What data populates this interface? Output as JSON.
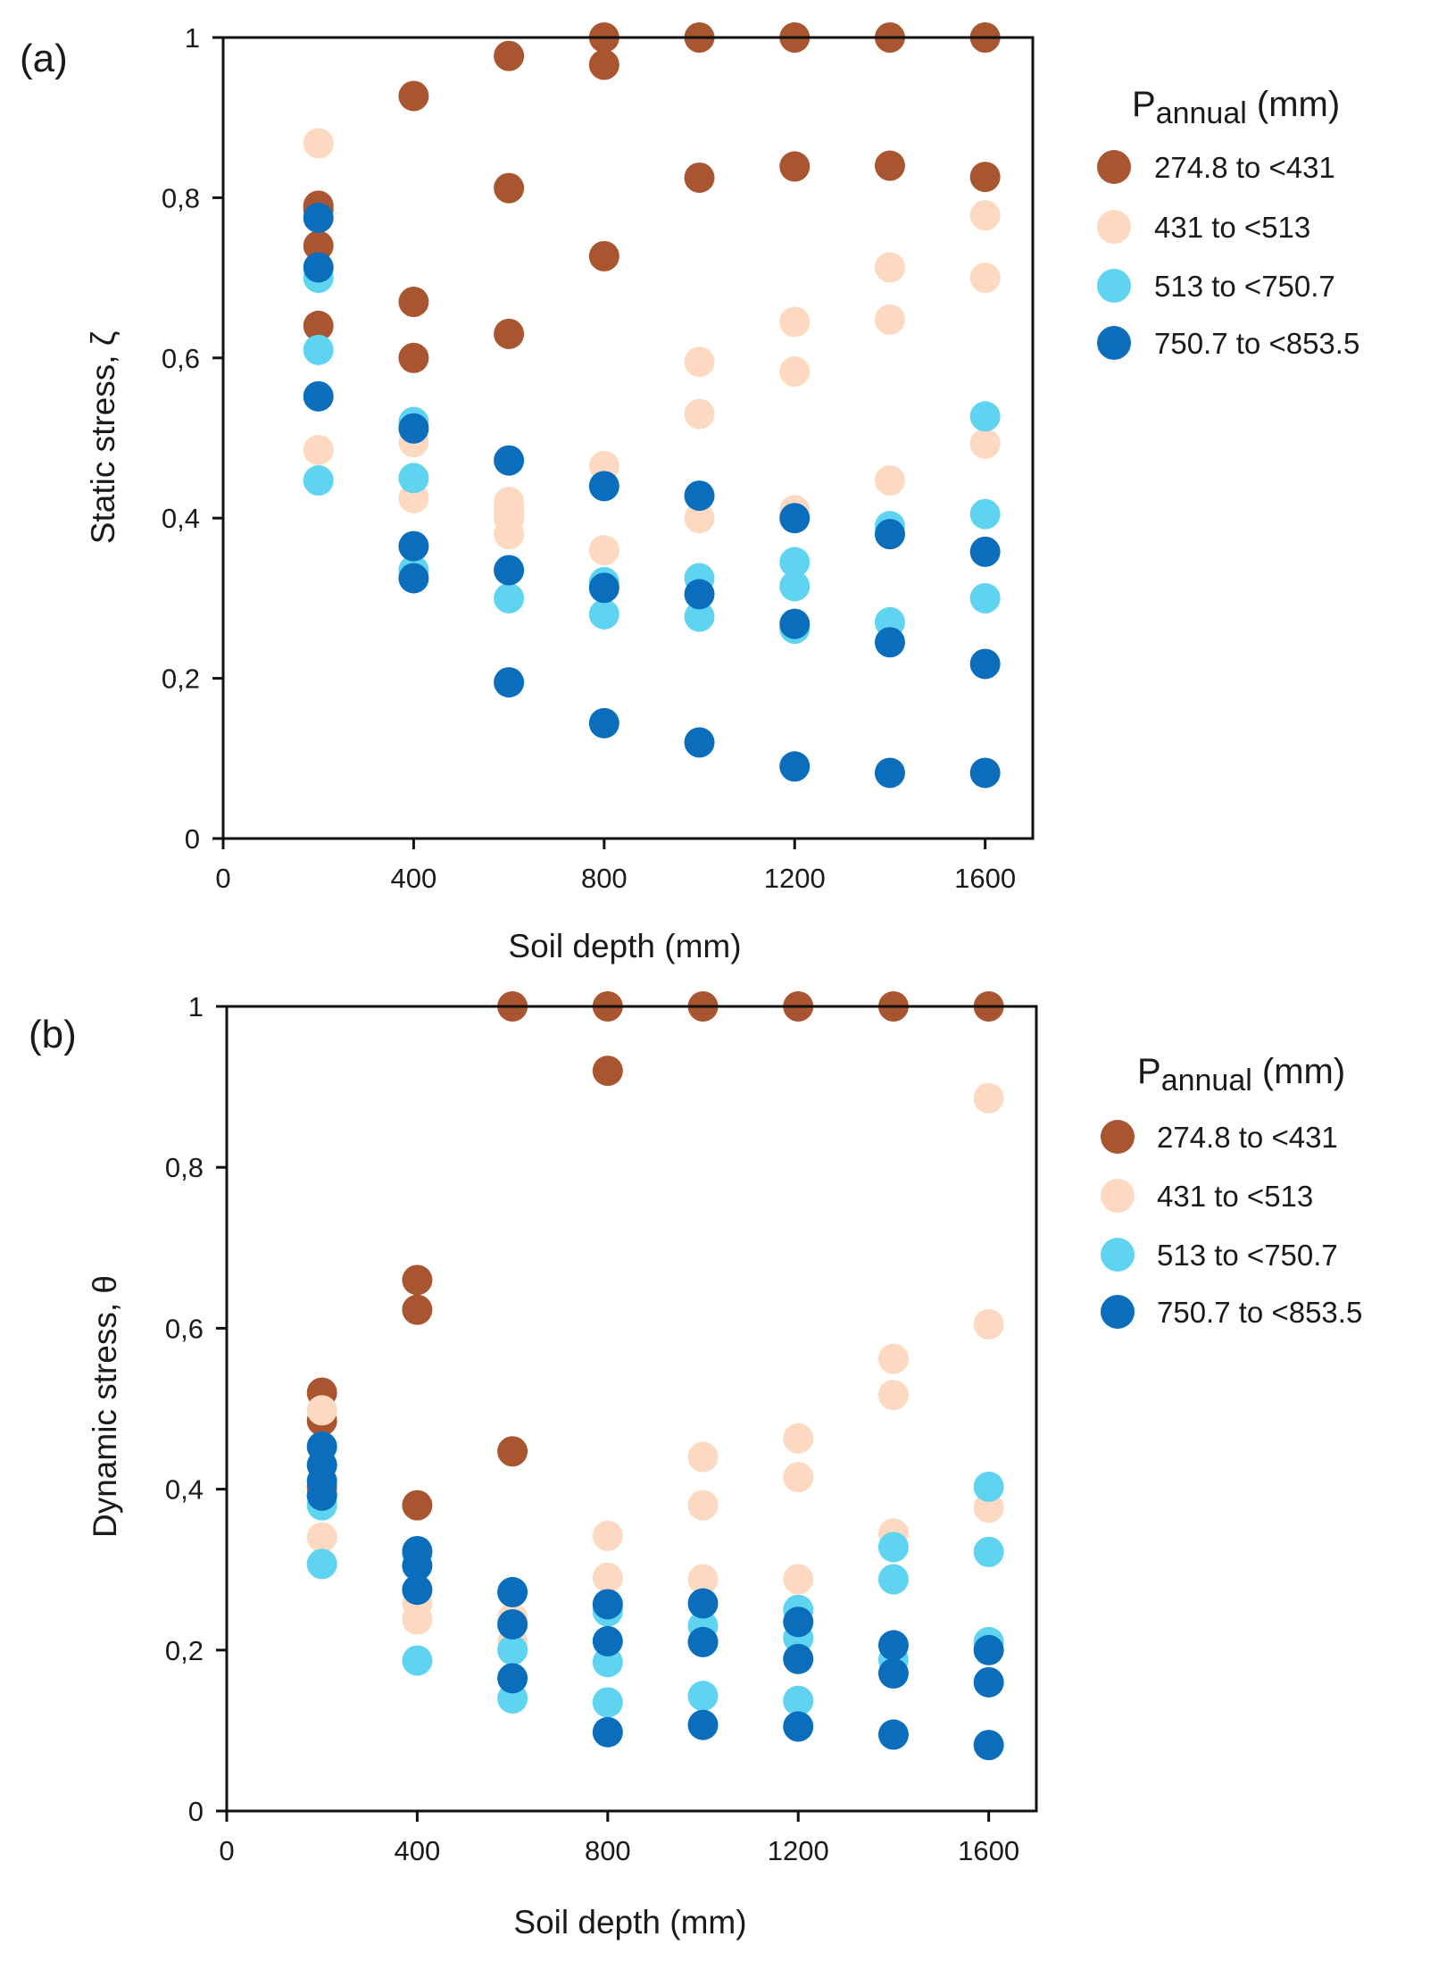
{
  "colors": {
    "274.8 to <431": "#a9552f",
    "431 to <513": "#fcd9c0",
    "513 to <750.7": "#5ed4f0",
    "750.7 to <853.5": "#0a6ebd"
  },
  "chart_data": [
    {
      "type": "scatter",
      "panel_label": "(a)",
      "xlabel": "Soil depth (mm)",
      "ylabel": "Static stress, ζ",
      "xlim": [
        0,
        1700
      ],
      "ylim": [
        0,
        1
      ],
      "xticks": [
        0,
        400,
        800,
        1200,
        1600
      ],
      "xtick_labels": [
        "0",
        "400",
        "800",
        "1200",
        "1600"
      ],
      "yticks": [
        0,
        0.2,
        0.4,
        0.6,
        0.8,
        1
      ],
      "ytick_labels": [
        "0",
        "0,2",
        "0,4",
        "0,6",
        "0,8",
        "1"
      ],
      "legend_title_main": "P",
      "legend_title_sub": "annual",
      "legend_title_unit": " (mm)",
      "series": [
        {
          "name": "274.8 to <431",
          "x": [
            200,
            200,
            200,
            200,
            400,
            400,
            400,
            600,
            600,
            600,
            800,
            800,
            800,
            1000,
            1000,
            1200,
            1200,
            1400,
            1400,
            1600,
            1600
          ],
          "y": [
            0.79,
            0.785,
            0.74,
            0.64,
            0.927,
            0.67,
            0.6,
            0.977,
            0.812,
            0.63,
            1.0,
            0.966,
            0.727,
            1.0,
            0.825,
            1.0,
            0.839,
            1.0,
            0.84,
            1.0,
            0.826
          ]
        },
        {
          "name": "431 to <513",
          "x": [
            200,
            200,
            400,
            400,
            600,
            600,
            600,
            600,
            800,
            800,
            1000,
            1000,
            1000,
            1200,
            1200,
            1200,
            1400,
            1400,
            1400,
            1600,
            1600,
            1600
          ],
          "y": [
            0.868,
            0.485,
            0.495,
            0.425,
            0.42,
            0.4,
            0.38,
            0.41,
            0.465,
            0.36,
            0.595,
            0.53,
            0.4,
            0.645,
            0.583,
            0.41,
            0.713,
            0.648,
            0.447,
            0.778,
            0.7,
            0.493
          ]
        },
        {
          "name": "513 to <750.7",
          "x": [
            200,
            200,
            200,
            400,
            400,
            400,
            600,
            800,
            800,
            1000,
            1000,
            1200,
            1200,
            1200,
            1400,
            1400,
            1600,
            1600,
            1600
          ],
          "y": [
            0.7,
            0.61,
            0.447,
            0.52,
            0.45,
            0.335,
            0.3,
            0.32,
            0.28,
            0.325,
            0.277,
            0.345,
            0.315,
            0.262,
            0.39,
            0.27,
            0.527,
            0.405,
            0.3
          ]
        },
        {
          "name": "750.7 to <853.5",
          "x": [
            200,
            200,
            200,
            400,
            400,
            400,
            600,
            600,
            600,
            800,
            800,
            800,
            1000,
            1000,
            1000,
            1200,
            1200,
            1200,
            1400,
            1400,
            1400,
            1600,
            1600,
            1600
          ],
          "y": [
            0.775,
            0.713,
            0.552,
            0.512,
            0.365,
            0.325,
            0.472,
            0.335,
            0.195,
            0.44,
            0.313,
            0.144,
            0.428,
            0.305,
            0.12,
            0.4,
            0.268,
            0.09,
            0.38,
            0.245,
            0.082,
            0.358,
            0.218,
            0.082
          ]
        }
      ]
    },
    {
      "type": "scatter",
      "panel_label": "(b)",
      "xlabel": "Soil depth (mm)",
      "ylabel": "Dynamic stress,  θ",
      "xlim": [
        0,
        1700
      ],
      "ylim": [
        0,
        1
      ],
      "xticks": [
        0,
        400,
        800,
        1200,
        1600
      ],
      "xtick_labels": [
        "0",
        "400",
        "800",
        "1200",
        "1600"
      ],
      "yticks": [
        0,
        0.2,
        0.4,
        0.6,
        0.8,
        1
      ],
      "ytick_labels": [
        "0",
        "0,2",
        "0,4",
        "0,6",
        "0,8",
        "1"
      ],
      "legend_title_main": "P",
      "legend_title_sub": "annual",
      "legend_title_unit": " (mm)",
      "series": [
        {
          "name": "274.8 to <431",
          "x": [
            200,
            200,
            200,
            400,
            400,
            400,
            600,
            600,
            800,
            800,
            1000,
            1200,
            1400,
            1600
          ],
          "y": [
            0.52,
            0.485,
            0.402,
            0.66,
            0.623,
            0.38,
            1.0,
            0.447,
            1.0,
            0.92,
            1.0,
            1.0,
            1.0,
            1.0
          ]
        },
        {
          "name": "431 to <513",
          "x": [
            200,
            200,
            400,
            400,
            600,
            600,
            800,
            800,
            800,
            1000,
            1000,
            1000,
            1200,
            1200,
            1200,
            1400,
            1400,
            1400,
            1600,
            1600,
            1600
          ],
          "y": [
            0.498,
            0.34,
            0.258,
            0.238,
            0.24,
            0.21,
            0.342,
            0.29,
            0.255,
            0.44,
            0.38,
            0.288,
            0.463,
            0.415,
            0.288,
            0.562,
            0.517,
            0.345,
            0.886,
            0.605,
            0.377
          ]
        },
        {
          "name": "513 to <750.7",
          "x": [
            200,
            200,
            200,
            400,
            400,
            600,
            600,
            800,
            800,
            800,
            1000,
            1000,
            1000,
            1200,
            1200,
            1200,
            1400,
            1400,
            1400,
            1600,
            1600,
            1600
          ],
          "y": [
            0.392,
            0.38,
            0.307,
            0.32,
            0.187,
            0.2,
            0.14,
            0.248,
            0.185,
            0.135,
            0.23,
            0.21,
            0.143,
            0.25,
            0.215,
            0.137,
            0.328,
            0.288,
            0.188,
            0.403,
            0.322,
            0.21
          ]
        },
        {
          "name": "750.7 to <853.5",
          "x": [
            200,
            200,
            200,
            200,
            400,
            400,
            400,
            600,
            600,
            600,
            800,
            800,
            800,
            1000,
            1000,
            1000,
            1200,
            1200,
            1200,
            1400,
            1400,
            1400,
            1600,
            1600,
            1600
          ],
          "y": [
            0.453,
            0.43,
            0.41,
            0.392,
            0.323,
            0.305,
            0.275,
            0.272,
            0.232,
            0.165,
            0.257,
            0.211,
            0.098,
            0.258,
            0.21,
            0.107,
            0.235,
            0.189,
            0.105,
            0.206,
            0.171,
            0.095,
            0.2,
            0.16,
            0.082
          ]
        }
      ]
    }
  ]
}
